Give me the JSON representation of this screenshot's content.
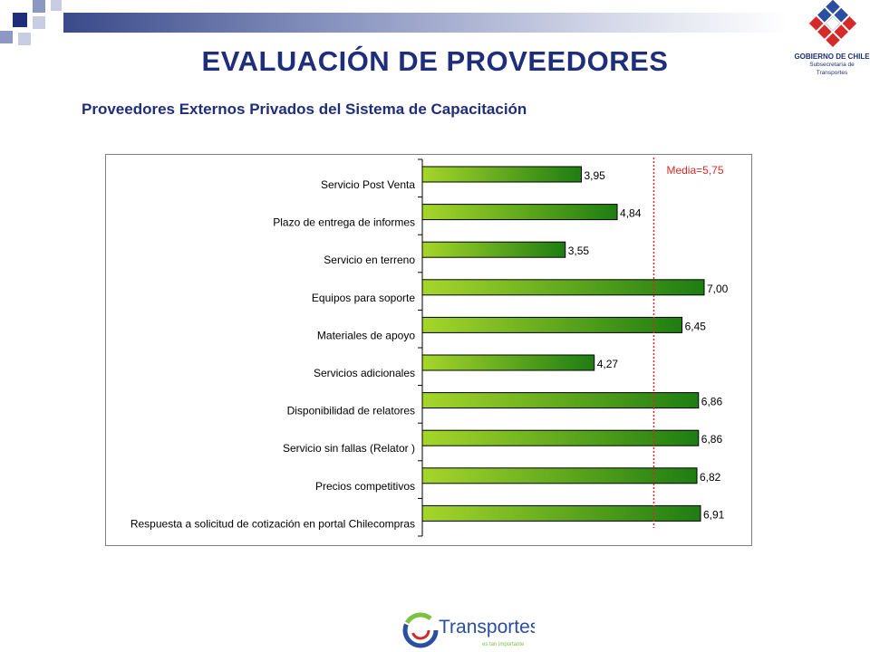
{
  "title": "EVALUACIÓN DE PROVEEDORES",
  "subtitle": "Proveedores Externos Privados  del Sistema de Capacitación",
  "logo_gobierno": {
    "line1": "GOBIERNO DE CHILE",
    "line2": "Subsecretaría de Transportes"
  },
  "logo_transportes": {
    "name": "Transportes",
    "tagline": "es tan importante"
  },
  "colors": {
    "title": "#1f2e7a",
    "bar_light": "#a6d62a",
    "bar_dark": "#1e7d12",
    "mean_line": "#d42a2a"
  },
  "chart_data": {
    "type": "bar",
    "orientation": "horizontal",
    "categories": [
      "Servicio Post Venta",
      "Plazo de entrega de informes",
      "Servicio en terreno",
      "Equipos para soporte",
      "Materiales de apoyo",
      "Servicios adicionales",
      "Disponibilidad de relatores",
      "Servicio sin fallas (Relator )",
      "Precios competitivos",
      "Respuesta a solicitud de cotización en portal Chilecompras"
    ],
    "values": [
      3.95,
      4.84,
      3.55,
      7.0,
      6.45,
      4.27,
      6.86,
      6.86,
      6.82,
      6.91
    ],
    "value_labels": [
      "3,95",
      "4,84",
      "3,55",
      "7,00",
      "6,45",
      "4,27",
      "6,86",
      "6,86",
      "6,82",
      "6,91"
    ],
    "xlim": [
      0,
      7.0
    ],
    "mean": {
      "value": 5.75,
      "label": "Media=5,75"
    },
    "grid": false,
    "legend": "none"
  }
}
